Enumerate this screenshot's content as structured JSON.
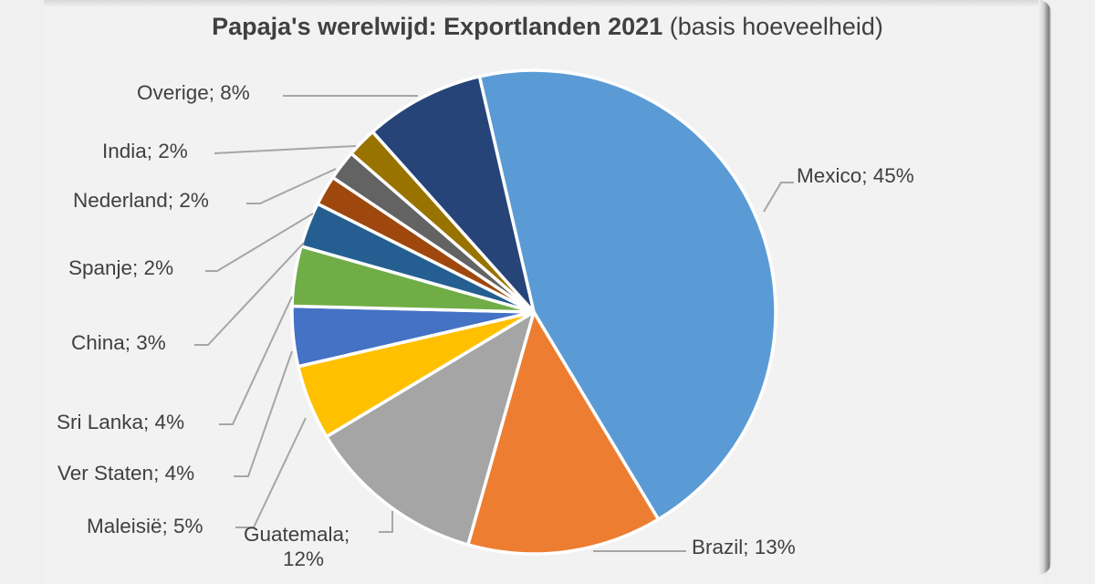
{
  "chart_data": {
    "type": "pie",
    "title": "Papaja's werelwijd: Exportlanden 2021",
    "subtitle": "(basis hoeveelheid)",
    "legend": "none (data labels with leader lines)",
    "categories": [
      "Mexico",
      "Brazil",
      "Guatemala",
      "Maleisië",
      "Ver Staten",
      "Sri Lanka",
      "China",
      "Spanje",
      "Nederland",
      "India",
      "Overige"
    ],
    "values": [
      45,
      13,
      12,
      5,
      4,
      4,
      3,
      2,
      2,
      2,
      8
    ],
    "colors": [
      "#5b9bd5",
      "#ed7d31",
      "#a5a5a5",
      "#ffc000",
      "#4472c4",
      "#70ad47",
      "#255e91",
      "#9e480e",
      "#636363",
      "#997300",
      "#264478"
    ],
    "labels": [
      "Mexico; 45%",
      "Brazil; 13%",
      "Guatemala; 12%",
      "Maleisië; 5%",
      "Ver Staten; 4%",
      "Sri Lanka; 4%",
      "China; 3%",
      "Spanje; 2%",
      "Nederland; 2%",
      "India; 2%",
      "Overige; 8%"
    ]
  },
  "title": {
    "bold": "Papaja's werelwijd: Exportlanden 2021",
    "normal": " (basis hoeveelheid)"
  },
  "labels": {
    "mexico": "Mexico; 45%",
    "brazil": "Brazil; 13%",
    "guatemala_1": "Guatemala;",
    "guatemala_2": "12%",
    "maleisie": "Maleisië; 5%",
    "ver_staten": "Ver Staten; 4%",
    "sri_lanka": "Sri Lanka; 4%",
    "china": "China; 3%",
    "spanje": "Spanje; 2%",
    "nederland": "Nederland; 2%",
    "india": "India; 2%",
    "overige": "Overige; 8%"
  }
}
